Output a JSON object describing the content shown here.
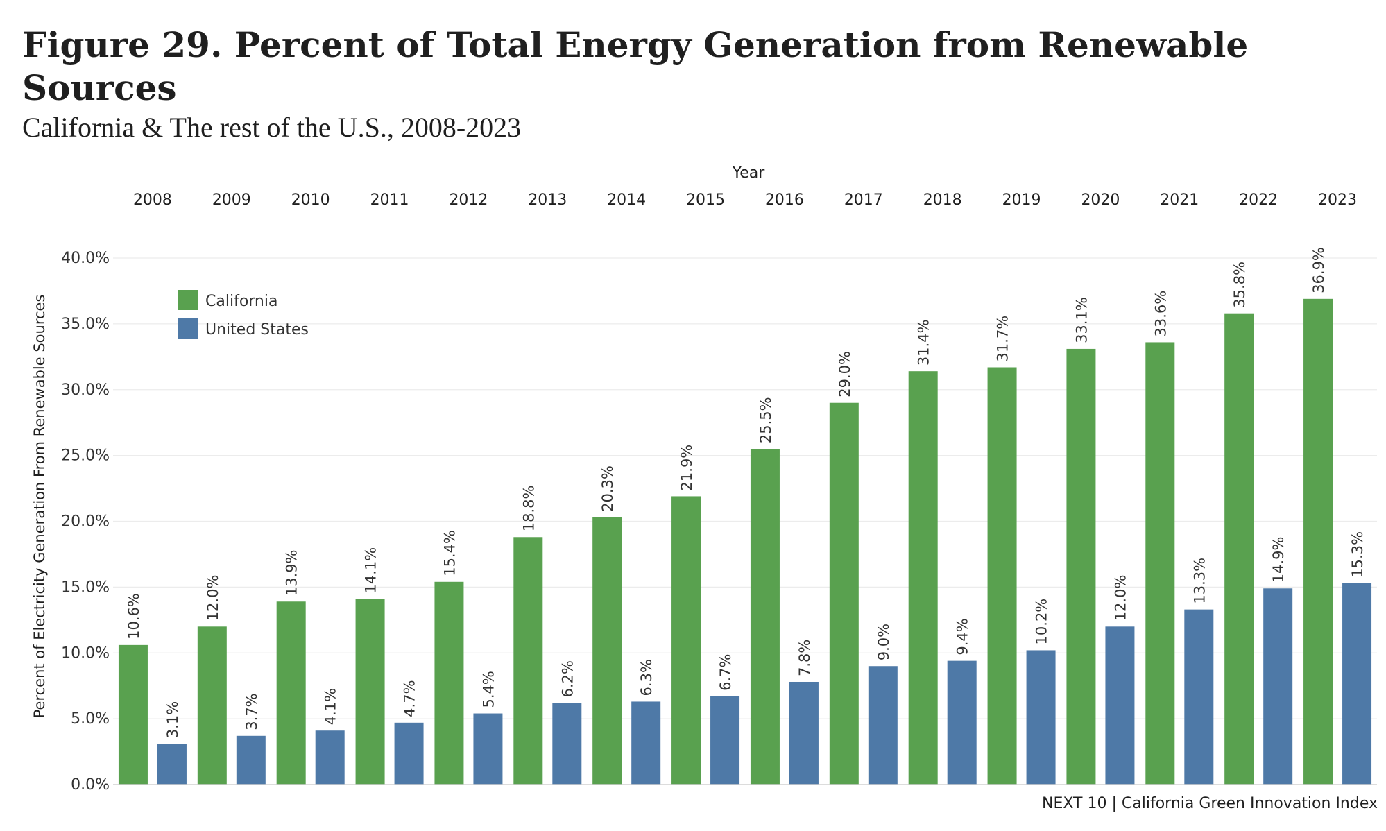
{
  "header": {
    "title": "Figure 29. Percent of Total Energy Generation from Renewable Sources",
    "subtitle": "California & The rest of the U.S., 2008-2023"
  },
  "footer": {
    "source": "NEXT 10 | California Green Innovation Index"
  },
  "chart_data": {
    "type": "bar",
    "x_header": "Year",
    "ylabel": "Percent of Electricity Generation From Renewable Sources",
    "categories": [
      "2008",
      "2009",
      "2010",
      "2011",
      "2012",
      "2013",
      "2014",
      "2015",
      "2016",
      "2017",
      "2018",
      "2019",
      "2020",
      "2021",
      "2022",
      "2023"
    ],
    "series": [
      {
        "name": "California",
        "color": "#59a14f",
        "values": [
          10.6,
          12.0,
          13.9,
          14.1,
          15.4,
          18.8,
          20.3,
          21.9,
          25.5,
          29.0,
          31.4,
          31.7,
          33.1,
          33.6,
          35.8,
          36.9
        ],
        "labels": [
          "10.6%",
          "12.0%",
          "13.9%",
          "14.1%",
          "15.4%",
          "18.8%",
          "20.3%",
          "21.9%",
          "25.5%",
          "29.0%",
          "31.4%",
          "31.7%",
          "33.1%",
          "33.6%",
          "35.8%",
          "36.9%"
        ]
      },
      {
        "name": "United States",
        "color": "#4e79a7",
        "values": [
          3.1,
          3.7,
          4.1,
          4.7,
          5.4,
          6.2,
          6.3,
          6.7,
          7.8,
          9.0,
          9.4,
          10.2,
          12.0,
          13.3,
          14.9,
          15.3
        ],
        "labels": [
          "3.1%",
          "3.7%",
          "4.1%",
          "4.7%",
          "5.4%",
          "6.2%",
          "6.3%",
          "6.7%",
          "7.8%",
          "9.0%",
          "9.4%",
          "10.2%",
          "12.0%",
          "13.3%",
          "14.9%",
          "15.3%"
        ]
      }
    ],
    "yticks": [
      "0.0%",
      "5.0%",
      "10.0%",
      "15.0%",
      "20.0%",
      "25.0%",
      "30.0%",
      "35.0%",
      "40.0%"
    ],
    "ylim": [
      0,
      40
    ],
    "grid": true,
    "legend_position": "top-left"
  }
}
